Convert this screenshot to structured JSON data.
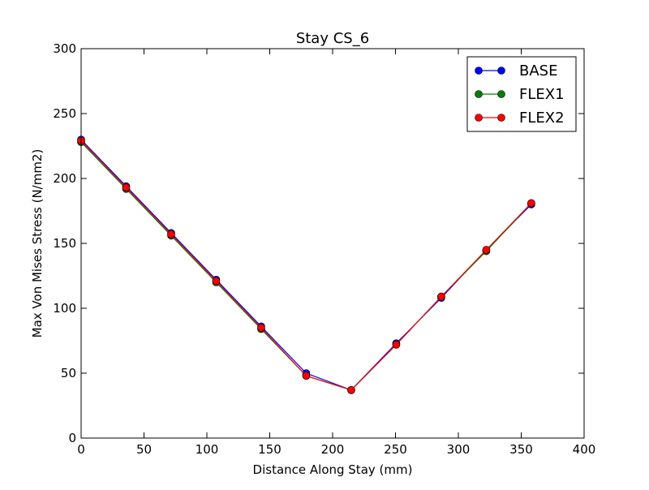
{
  "chart_data": {
    "type": "line",
    "title": "Stay CS_6",
    "xlabel": "Distance Along Stay (mm)",
    "ylabel": "Max Von Mises Stress (N/mm2)",
    "xlim": [
      0,
      400
    ],
    "ylim": [
      0,
      300
    ],
    "x_ticks": [
      0,
      50,
      100,
      150,
      200,
      250,
      300,
      350,
      400
    ],
    "y_ticks": [
      0,
      50,
      100,
      150,
      200,
      250,
      300
    ],
    "grid": false,
    "legend_position": "top-right",
    "x": [
      0,
      35.8,
      71.6,
      107.4,
      143.2,
      179,
      214.8,
      250.6,
      286.4,
      322.2,
      358
    ],
    "series": [
      {
        "name": "BASE",
        "color": "#0000ff",
        "values": [
          230,
          194,
          158,
          122,
          86,
          50,
          37,
          73,
          108,
          145,
          180
        ]
      },
      {
        "name": "FLEX1",
        "color": "#008000",
        "values": [
          228,
          192,
          156,
          120,
          84,
          48,
          37,
          72,
          109,
          144,
          181
        ]
      },
      {
        "name": "FLEX2",
        "color": "#ff0000",
        "values": [
          229,
          193,
          157,
          121,
          85,
          48,
          37,
          72,
          109,
          145,
          181
        ]
      }
    ]
  }
}
